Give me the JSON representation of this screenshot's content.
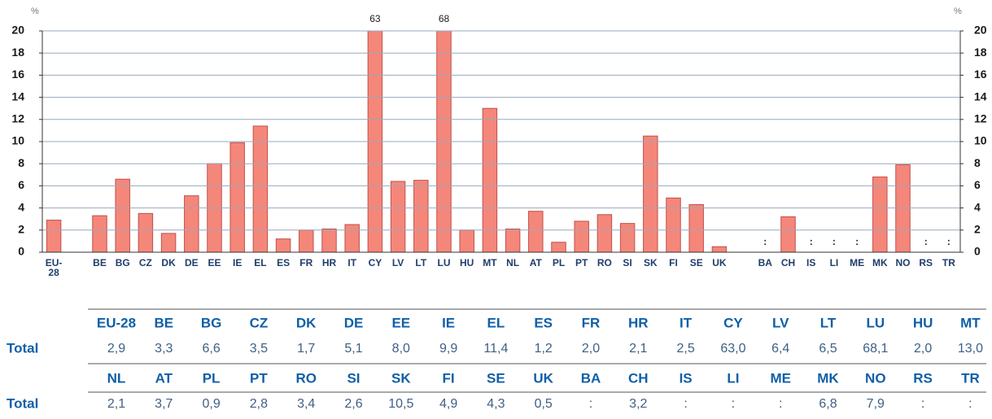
{
  "chart_data": {
    "type": "bar",
    "y_unit": "%",
    "categories": [
      "EU-28",
      null,
      "BE",
      "BG",
      "CZ",
      "DK",
      "DE",
      "EE",
      "IE",
      "EL",
      "ES",
      "FR",
      "HR",
      "IT",
      "CY",
      "LV",
      "LT",
      "LU",
      "HU",
      "MT",
      "NL",
      "AT",
      "PL",
      "PT",
      "RO",
      "SI",
      "SK",
      "FI",
      "SE",
      "UK",
      null,
      "BA",
      "CH",
      "IS",
      "LI",
      "ME",
      "MK",
      "NO",
      "RS",
      "TR"
    ],
    "values": [
      2.9,
      null,
      3.3,
      6.6,
      3.5,
      1.7,
      5.1,
      8.0,
      9.9,
      11.4,
      1.2,
      2.0,
      2.1,
      2.5,
      63.0,
      6.4,
      6.5,
      68.1,
      2.0,
      13.0,
      2.1,
      3.7,
      0.9,
      2.8,
      3.4,
      2.6,
      10.5,
      4.9,
      4.3,
      0.5,
      null,
      null,
      3.2,
      null,
      null,
      null,
      6.8,
      7.9,
      null,
      null
    ],
    "value_labels": [
      null,
      null,
      null,
      null,
      null,
      null,
      null,
      null,
      null,
      null,
      null,
      null,
      null,
      null,
      "63",
      null,
      null,
      "68",
      null,
      null,
      null,
      null,
      null,
      null,
      null,
      null,
      null,
      null,
      null,
      null,
      null,
      ":",
      null,
      ":",
      ":",
      ":",
      null,
      null,
      ":",
      ":"
    ],
    "color": "#f4877a",
    "edge_color": "#c0504d",
    "ylim": [
      0,
      20
    ],
    "yticks": [
      0,
      2,
      4,
      6,
      8,
      10,
      12,
      14,
      16,
      18,
      20
    ],
    "grid": true
  },
  "table": {
    "row_label": "Total",
    "header_rows": [
      [
        "EU-28",
        "BE",
        "BG",
        "CZ",
        "DK",
        "DE",
        "EE",
        "IE",
        "EL",
        "ES",
        "FR",
        "HR",
        "IT",
        "CY",
        "LV",
        "LT",
        "LU",
        "HU",
        "MT"
      ],
      [
        "NL",
        "AT",
        "PL",
        "PT",
        "RO",
        "SI",
        "SK",
        "FI",
        "SE",
        "UK",
        "BA",
        "CH",
        "IS",
        "LI",
        "ME",
        "MK",
        "NO",
        "RS",
        "TR"
      ]
    ],
    "rows": [
      [
        "2,9",
        "3,3",
        "6,6",
        "3,5",
        "1,7",
        "5,1",
        "8,0",
        "9,9",
        "11,4",
        "1,2",
        "2,0",
        "2,1",
        "2,5",
        "63,0",
        "6,4",
        "6,5",
        "68,1",
        "2,0",
        "13,0"
      ],
      [
        "2,1",
        "3,7",
        "0,9",
        "2,8",
        "3,4",
        "2,6",
        "10,5",
        "4,9",
        "4,3",
        "0,5",
        ":",
        "3,2",
        ":",
        ":",
        ":",
        "6,8",
        "7,9",
        ":",
        ":"
      ]
    ]
  }
}
